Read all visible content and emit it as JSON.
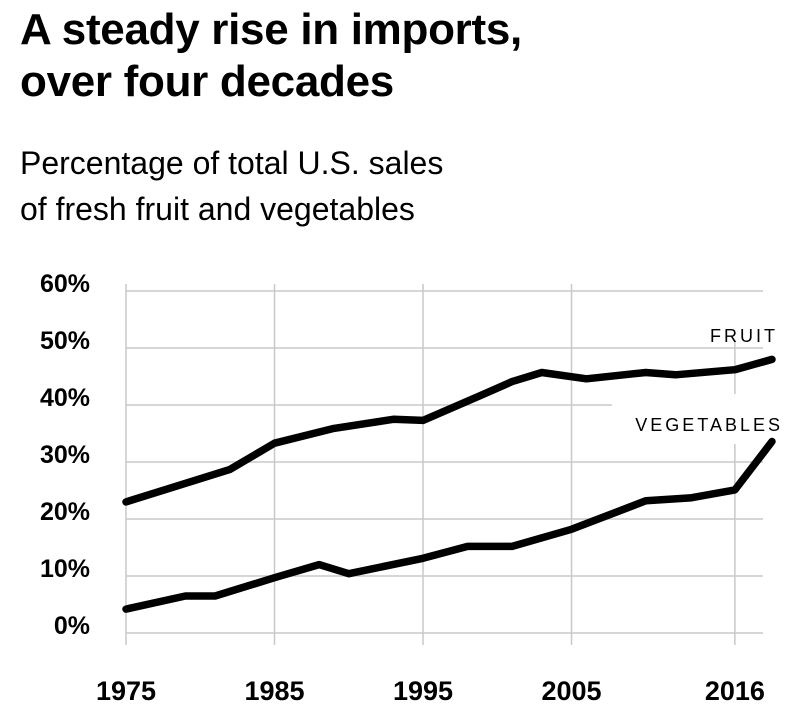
{
  "chart_data": {
    "type": "line",
    "title": "A steady rise in imports, over four decades",
    "title_lines": [
      "A steady rise in imports,",
      "over four decades"
    ],
    "subtitle_lines": [
      "Percentage of total U.S. sales",
      "of fresh fruit and vegetables"
    ],
    "xlabel": "",
    "ylabel": "",
    "xlim": [
      1975,
      2018.5
    ],
    "ylim": [
      0,
      60
    ],
    "grid": true,
    "x_ticks": [
      1975,
      1985,
      1995,
      2005,
      2016
    ],
    "x_tick_labels": [
      "1975",
      "1985",
      "1995",
      "2005",
      "2016"
    ],
    "y_ticks": [
      0,
      10,
      20,
      30,
      40,
      50,
      60
    ],
    "y_tick_labels": [
      "0%",
      "10%",
      "20%",
      "30%",
      "40%",
      "50%",
      "60%"
    ],
    "line_color": "#000000",
    "grid_color": "#c8c8c8",
    "series": [
      {
        "name": "FRUIT",
        "x": [
          1975,
          1982,
          1985,
          1989,
          1993,
          1995,
          1999,
          2001,
          2003,
          2006,
          2010,
          2012,
          2016,
          2018.5
        ],
        "values": [
          23.0,
          28.7,
          33.3,
          35.9,
          37.5,
          37.3,
          41.8,
          44.1,
          45.7,
          44.6,
          45.7,
          45.3,
          46.2,
          48.0
        ]
      },
      {
        "name": "VEGETABLES",
        "x": [
          1975,
          1979,
          1981,
          1985,
          1988,
          1990,
          1995,
          1998,
          2001,
          2005,
          2010,
          2013,
          2016,
          2018.5
        ],
        "values": [
          4.2,
          6.5,
          6.5,
          9.7,
          12.0,
          10.4,
          13.1,
          15.2,
          15.2,
          18.2,
          23.2,
          23.7,
          25.1,
          33.6
        ]
      }
    ]
  }
}
